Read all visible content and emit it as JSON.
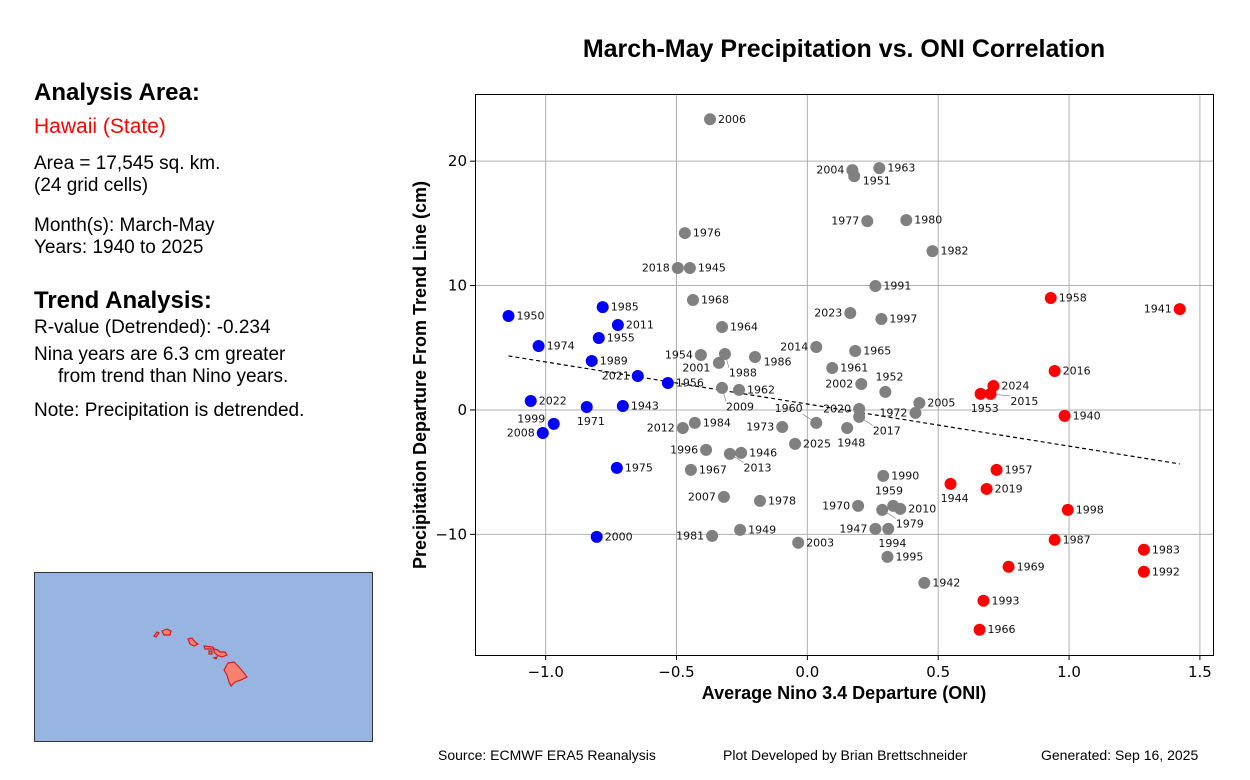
{
  "info_panel": {
    "analysis_heading": "Analysis Area:",
    "area_name": "Hawaii (State)",
    "area_size": "Area = 17,545 sq. km.",
    "grid_cells": "(24 grid cells)",
    "months": "Month(s): March-May",
    "years": "Years: 1940 to 2025",
    "trend_heading": "Trend Analysis:",
    "r_value": "R-value (Detrended): -0.234",
    "difference_line1": "Nina years are 6.3 cm greater",
    "difference_line2": "from trend than Nino years.",
    "note": "Note: Precipitation is detrended."
  },
  "map": {
    "ocean_color": "#98b4e0",
    "land_color": "#fa8072",
    "outline_color": "#cc1f1f"
  },
  "footer": {
    "source": "Source: ECMWF ERA5 Reanalysis",
    "credit": "Plot Developed by Brian Brettschneider",
    "generated": "Generated: Sep 16, 2025"
  },
  "chart_data": {
    "type": "scatter",
    "title": "March-May Precipitation vs. ONI Correlation",
    "xlabel": "Average Nino 3.4 Departure (ONI)",
    "ylabel": "Precipitation Departure From Trend Line (cm)",
    "xlim": [
      -1.27,
      1.55
    ],
    "ylim": [
      -19.7,
      25.4
    ],
    "xticks": [
      -1.0,
      -0.5,
      0.0,
      0.5,
      1.0,
      1.5
    ],
    "xtick_labels": [
      "−1.0",
      "−0.5",
      "0.0",
      "0.5",
      "1.0",
      "1.5"
    ],
    "yticks": [
      -10,
      0,
      10,
      20
    ],
    "ytick_labels": [
      "−10",
      "0",
      "10",
      "20"
    ],
    "grid": true,
    "colors": {
      "nina": "#0000ff",
      "neutral": "#808080",
      "nino": "#ff0000"
    },
    "trend_line": {
      "x": [
        -1.142,
        1.423
      ],
      "y": [
        4.34,
        -4.34
      ],
      "style": "dashed",
      "color": "#000000"
    },
    "points": [
      {
        "year": "1950",
        "x": -1.142,
        "y": 7.55,
        "cat": "nina"
      },
      {
        "year": "1985",
        "x": -0.782,
        "y": 8.27,
        "cat": "nina"
      },
      {
        "year": "2011",
        "x": -0.724,
        "y": 6.83,
        "cat": "nina"
      },
      {
        "year": "1955",
        "x": -0.797,
        "y": 5.78,
        "cat": "nina"
      },
      {
        "year": "1974",
        "x": -1.027,
        "y": 5.14,
        "cat": "nina"
      },
      {
        "year": "1989",
        "x": -0.824,
        "y": 3.94,
        "cat": "nina"
      },
      {
        "year": "2021",
        "x": -0.648,
        "y": 2.73,
        "cat": "nina"
      },
      {
        "year": "1956",
        "x": -0.533,
        "y": 2.17,
        "cat": "nina"
      },
      {
        "year": "2022",
        "x": -1.057,
        "y": 0.72,
        "cat": "nina"
      },
      {
        "year": "1971",
        "x": -0.843,
        "y": 0.24,
        "cat": "nina"
      },
      {
        "year": "1943",
        "x": -0.705,
        "y": 0.32,
        "cat": "nina"
      },
      {
        "year": "1999",
        "x": -0.969,
        "y": -1.12,
        "cat": "nina"
      },
      {
        "year": "2008",
        "x": -1.011,
        "y": -1.85,
        "cat": "nina"
      },
      {
        "year": "1975",
        "x": -0.728,
        "y": -4.66,
        "cat": "nina"
      },
      {
        "year": "2000",
        "x": -0.805,
        "y": -10.2,
        "cat": "nina"
      },
      {
        "year": "2006",
        "x": -0.372,
        "y": 23.37,
        "cat": "neutral"
      },
      {
        "year": "2004",
        "x": 0.172,
        "y": 19.28,
        "cat": "neutral"
      },
      {
        "year": "1951",
        "x": 0.179,
        "y": 18.8,
        "cat": "neutral"
      },
      {
        "year": "1963",
        "x": 0.275,
        "y": 19.44,
        "cat": "neutral"
      },
      {
        "year": "1977",
        "x": 0.229,
        "y": 15.18,
        "cat": "neutral"
      },
      {
        "year": "1980",
        "x": 0.378,
        "y": 15.26,
        "cat": "neutral"
      },
      {
        "year": "1982",
        "x": 0.478,
        "y": 12.77,
        "cat": "neutral"
      },
      {
        "year": "1976",
        "x": -0.468,
        "y": 14.22,
        "cat": "neutral"
      },
      {
        "year": "2018",
        "x": -0.495,
        "y": 11.41,
        "cat": "neutral"
      },
      {
        "year": "1945",
        "x": -0.449,
        "y": 11.41,
        "cat": "neutral"
      },
      {
        "year": "1968",
        "x": -0.437,
        "y": 8.84,
        "cat": "neutral"
      },
      {
        "year": "1991",
        "x": 0.26,
        "y": 9.96,
        "cat": "neutral"
      },
      {
        "year": "2023",
        "x": 0.164,
        "y": 7.79,
        "cat": "neutral"
      },
      {
        "year": "1997",
        "x": 0.283,
        "y": 7.31,
        "cat": "neutral"
      },
      {
        "year": "1964",
        "x": -0.326,
        "y": 6.67,
        "cat": "neutral"
      },
      {
        "year": "2014",
        "x": 0.034,
        "y": 5.06,
        "cat": "neutral"
      },
      {
        "year": "1965",
        "x": 0.183,
        "y": 4.74,
        "cat": "neutral"
      },
      {
        "year": "1954",
        "x": -0.407,
        "y": 4.42,
        "cat": "neutral"
      },
      {
        "year": "1988",
        "x": -0.315,
        "y": 4.5,
        "cat": "neutral"
      },
      {
        "year": "1986",
        "x": -0.2,
        "y": 4.26,
        "cat": "neutral"
      },
      {
        "year": "2001",
        "x": -0.338,
        "y": 3.78,
        "cat": "neutral"
      },
      {
        "year": "1961",
        "x": 0.095,
        "y": 3.37,
        "cat": "neutral"
      },
      {
        "year": "2002",
        "x": 0.206,
        "y": 2.09,
        "cat": "neutral"
      },
      {
        "year": "2009",
        "x": -0.326,
        "y": 1.77,
        "cat": "neutral"
      },
      {
        "year": "1962",
        "x": -0.261,
        "y": 1.61,
        "cat": "neutral"
      },
      {
        "year": "1952",
        "x": 0.298,
        "y": 1.45,
        "cat": "neutral"
      },
      {
        "year": "2005",
        "x": 0.428,
        "y": 0.56,
        "cat": "neutral"
      },
      {
        "year": "1972",
        "x": 0.413,
        "y": -0.24,
        "cat": "neutral"
      },
      {
        "year": "2020",
        "x": 0.198,
        "y": 0.08,
        "cat": "neutral"
      },
      {
        "year": "2017",
        "x": 0.198,
        "y": -0.56,
        "cat": "neutral"
      },
      {
        "year": "1984",
        "x": -0.43,
        "y": -1.04,
        "cat": "neutral"
      },
      {
        "year": "2012",
        "x": -0.476,
        "y": -1.45,
        "cat": "neutral"
      },
      {
        "year": "1973",
        "x": -0.096,
        "y": -1.37,
        "cat": "neutral"
      },
      {
        "year": "1960",
        "x": 0.034,
        "y": -1.04,
        "cat": "neutral"
      },
      {
        "year": "1948",
        "x": 0.152,
        "y": -1.45,
        "cat": "neutral"
      },
      {
        "year": "1996",
        "x": -0.387,
        "y": -3.21,
        "cat": "neutral"
      },
      {
        "year": "2013",
        "x": -0.296,
        "y": -3.53,
        "cat": "neutral"
      },
      {
        "year": "1946",
        "x": -0.253,
        "y": -3.45,
        "cat": "neutral"
      },
      {
        "year": "2025",
        "x": -0.047,
        "y": -2.73,
        "cat": "neutral"
      },
      {
        "year": "1967",
        "x": -0.445,
        "y": -4.82,
        "cat": "neutral"
      },
      {
        "year": "1990",
        "x": 0.29,
        "y": -5.3,
        "cat": "neutral"
      },
      {
        "year": "2007",
        "x": -0.319,
        "y": -6.99,
        "cat": "neutral"
      },
      {
        "year": "1978",
        "x": -0.181,
        "y": -7.31,
        "cat": "neutral"
      },
      {
        "year": "1970",
        "x": 0.194,
        "y": -7.71,
        "cat": "neutral"
      },
      {
        "year": "1979",
        "x": 0.286,
        "y": -8.03,
        "cat": "neutral"
      },
      {
        "year": "1959",
        "x": 0.328,
        "y": -7.71,
        "cat": "neutral"
      },
      {
        "year": "2010",
        "x": 0.355,
        "y": -7.95,
        "cat": "neutral"
      },
      {
        "year": "1947",
        "x": 0.26,
        "y": -9.56,
        "cat": "neutral"
      },
      {
        "year": "1994",
        "x": 0.309,
        "y": -9.56,
        "cat": "neutral"
      },
      {
        "year": "1981",
        "x": -0.364,
        "y": -10.12,
        "cat": "neutral"
      },
      {
        "year": "1949",
        "x": -0.257,
        "y": -9.64,
        "cat": "neutral"
      },
      {
        "year": "2003",
        "x": -0.035,
        "y": -10.68,
        "cat": "neutral"
      },
      {
        "year": "1995",
        "x": 0.306,
        "y": -11.81,
        "cat": "neutral"
      },
      {
        "year": "1942",
        "x": 0.447,
        "y": -13.9,
        "cat": "neutral"
      },
      {
        "year": "1958",
        "x": 0.93,
        "y": 9.0,
        "cat": "nino"
      },
      {
        "year": "1941",
        "x": 1.423,
        "y": 8.11,
        "cat": "nino"
      },
      {
        "year": "2016",
        "x": 0.945,
        "y": 3.13,
        "cat": "nino"
      },
      {
        "year": "2024",
        "x": 0.711,
        "y": 1.93,
        "cat": "nino"
      },
      {
        "year": "1953",
        "x": 0.662,
        "y": 1.29,
        "cat": "nino"
      },
      {
        "year": "2015",
        "x": 0.7,
        "y": 1.29,
        "cat": "nino"
      },
      {
        "year": "1940",
        "x": 0.983,
        "y": -0.48,
        "cat": "nino"
      },
      {
        "year": "1957",
        "x": 0.723,
        "y": -4.82,
        "cat": "nino"
      },
      {
        "year": "1944",
        "x": 0.547,
        "y": -5.94,
        "cat": "nino"
      },
      {
        "year": "2019",
        "x": 0.685,
        "y": -6.35,
        "cat": "nino"
      },
      {
        "year": "1998",
        "x": 0.995,
        "y": -8.03,
        "cat": "nino"
      },
      {
        "year": "1987",
        "x": 0.945,
        "y": -10.44,
        "cat": "nino"
      },
      {
        "year": "1983",
        "x": 1.286,
        "y": -11.24,
        "cat": "nino"
      },
      {
        "year": "1992",
        "x": 1.286,
        "y": -13.01,
        "cat": "nino"
      },
      {
        "year": "1969",
        "x": 0.769,
        "y": -12.61,
        "cat": "nino"
      },
      {
        "year": "1993",
        "x": 0.673,
        "y": -15.34,
        "cat": "nino"
      },
      {
        "year": "1966",
        "x": 0.658,
        "y": -17.67,
        "cat": "nino"
      }
    ]
  }
}
